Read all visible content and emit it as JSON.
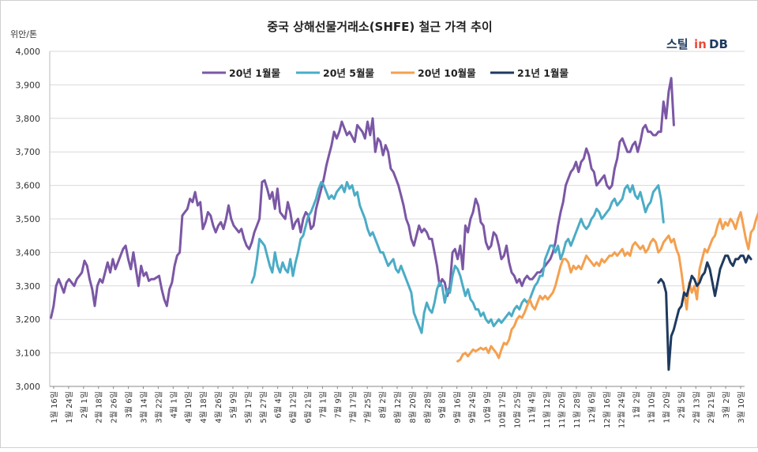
{
  "chart_data": {
    "type": "line",
    "title": "중국 상해선물거래소(SHFE) 철근 가격 추이",
    "ylabel": "위안/톤",
    "ylim": [
      3000,
      4000
    ],
    "yticks": [
      3000,
      3100,
      3200,
      3300,
      3400,
      3500,
      3600,
      3700,
      3800,
      3900,
      4000
    ],
    "ytick_labels": [
      "3,000",
      "3,100",
      "3,200",
      "3,300",
      "3,400",
      "3,500",
      "3,600",
      "3,700",
      "3,800",
      "3,900",
      "4,000"
    ],
    "grid": "horizontal",
    "legend_position": "top",
    "x_count": 270,
    "x_tick_labels": [
      "1월 16일",
      "1월 24일",
      "2월 1일",
      "2월 18일",
      "2월 26일",
      "3월 6일",
      "3월 14일",
      "3월 22일",
      "4월 1일",
      "4월 10일",
      "4월 18일",
      "4월 26일",
      "5월 9일",
      "5월 17일",
      "5월 27일",
      "6월 4일",
      "6월 12일",
      "6월 21일",
      "7월 1일",
      "7월 9일",
      "7월 17일",
      "7월 25일",
      "8월 2일",
      "8월 12일",
      "8월 20일",
      "8월 28일",
      "9월 8일",
      "9월 16일",
      "9월 24일",
      "10월 9일",
      "10월 17일",
      "10월 25일",
      "11월 4일",
      "11월 12일",
      "11월 20일",
      "11월 28일",
      "12월 6일",
      "12월 16일",
      "12월 24일",
      "1월 2일",
      "1월 10일",
      "1월 20일",
      "2월 5일",
      "2월 13일",
      "2월 21일",
      "3월 2일",
      "3월 10일"
    ],
    "series": [
      {
        "name": "20년 1월물",
        "color": "#7b57a5",
        "start": 0,
        "values": [
          3205,
          3240,
          3300,
          3320,
          3300,
          3280,
          3310,
          3320,
          3310,
          3300,
          3320,
          3330,
          3340,
          3375,
          3360,
          3320,
          3290,
          3240,
          3300,
          3320,
          3310,
          3340,
          3370,
          3340,
          3380,
          3350,
          3370,
          3390,
          3410,
          3420,
          3380,
          3350,
          3400,
          3350,
          3300,
          3360,
          3330,
          3340,
          3315,
          3320,
          3320,
          3325,
          3330,
          3290,
          3260,
          3240,
          3290,
          3310,
          3360,
          3390,
          3400,
          3510,
          3520,
          3530,
          3560,
          3550,
          3580,
          3540,
          3550,
          3470,
          3490,
          3520,
          3510,
          3480,
          3460,
          3480,
          3490,
          3470,
          3500,
          3540,
          3500,
          3480,
          3470,
          3460,
          3470,
          3440,
          3420,
          3410,
          3430,
          3460,
          3480,
          3500,
          3610,
          3615,
          3590,
          3560,
          3580,
          3530,
          3590,
          3520,
          3510,
          3500,
          3550,
          3520,
          3470,
          3490,
          3500,
          3460,
          3500,
          3520,
          3510,
          3470,
          3480,
          3530,
          3560,
          3590,
          3620,
          3660,
          3690,
          3720,
          3760,
          3740,
          3760,
          3790,
          3770,
          3750,
          3760,
          3745,
          3730,
          3780,
          3770,
          3760,
          3740,
          3790,
          3750,
          3800,
          3700,
          3740,
          3730,
          3690,
          3720,
          3700,
          3650,
          3640,
          3620,
          3600,
          3570,
          3540,
          3500,
          3480,
          3440,
          3420,
          3450,
          3480,
          3460,
          3470,
          3460,
          3440,
          3440,
          3400,
          3360,
          3300,
          3320,
          3310,
          3270,
          3300,
          3400,
          3410,
          3380,
          3420,
          3350,
          3480,
          3460,
          3500,
          3520,
          3560,
          3540,
          3490,
          3480,
          3430,
          3410,
          3420,
          3460,
          3450,
          3420,
          3380,
          3390,
          3420,
          3370,
          3340,
          3330,
          3310,
          3320,
          3300,
          3320,
          3330,
          3320,
          3320,
          3330,
          3340,
          3340,
          3350,
          3360,
          3370,
          3380,
          3400,
          3430,
          3480,
          3520,
          3550,
          3600,
          3620,
          3640,
          3650,
          3670,
          3640,
          3670,
          3680,
          3710,
          3690,
          3650,
          3640,
          3600,
          3610,
          3620,
          3630,
          3600,
          3590,
          3600,
          3650,
          3680,
          3730,
          3740,
          3720,
          3700,
          3700,
          3720,
          3730,
          3700,
          3730,
          3770,
          3780,
          3760,
          3760,
          3750,
          3750,
          3760,
          3760,
          3850,
          3800,
          3880,
          3920,
          3780
        ]
      },
      {
        "name": "20년 5월물",
        "color": "#4bacc6",
        "start": 78,
        "values": [
          3310,
          3330,
          3380,
          3440,
          3430,
          3420,
          3390,
          3360,
          3340,
          3400,
          3360,
          3340,
          3370,
          3350,
          3340,
          3380,
          3330,
          3370,
          3400,
          3440,
          3450,
          3480,
          3510,
          3520,
          3540,
          3560,
          3590,
          3610,
          3600,
          3580,
          3560,
          3570,
          3560,
          3580,
          3590,
          3600,
          3580,
          3610,
          3590,
          3600,
          3570,
          3580,
          3540,
          3520,
          3500,
          3470,
          3450,
          3460,
          3440,
          3420,
          3400,
          3400,
          3380,
          3360,
          3370,
          3380,
          3350,
          3340,
          3360,
          3340,
          3320,
          3300,
          3280,
          3220,
          3200,
          3180,
          3160,
          3220,
          3250,
          3230,
          3220,
          3250,
          3290,
          3310,
          3300,
          3250,
          3290,
          3280,
          3330,
          3360,
          3350,
          3330,
          3300,
          3270,
          3290,
          3260,
          3250,
          3230,
          3230,
          3210,
          3220,
          3200,
          3190,
          3200,
          3180,
          3190,
          3200,
          3190,
          3200,
          3210,
          3220,
          3210,
          3230,
          3240,
          3230,
          3250,
          3260,
          3250,
          3260,
          3280,
          3300,
          3310,
          3330,
          3330,
          3380,
          3400,
          3420,
          3420,
          3400,
          3420,
          3380,
          3400,
          3430,
          3440,
          3420,
          3440,
          3460,
          3480,
          3500,
          3480,
          3470,
          3480,
          3500,
          3510,
          3530,
          3520,
          3500,
          3510,
          3520,
          3530,
          3550,
          3560,
          3540,
          3550,
          3560,
          3590,
          3600,
          3580,
          3600,
          3570,
          3560,
          3580,
          3550,
          3520,
          3540,
          3550,
          3580,
          3590,
          3600,
          3560,
          3490
        ]
      },
      {
        "name": "20년 10월물",
        "color": "#f4a04f",
        "start": 158,
        "values": [
          3075,
          3080,
          3095,
          3100,
          3090,
          3100,
          3110,
          3105,
          3110,
          3115,
          3110,
          3115,
          3100,
          3120,
          3110,
          3100,
          3085,
          3110,
          3130,
          3125,
          3140,
          3170,
          3180,
          3200,
          3210,
          3205,
          3220,
          3240,
          3260,
          3240,
          3230,
          3250,
          3270,
          3260,
          3270,
          3260,
          3270,
          3280,
          3300,
          3330,
          3360,
          3380,
          3380,
          3370,
          3340,
          3360,
          3350,
          3360,
          3350,
          3370,
          3390,
          3380,
          3370,
          3360,
          3370,
          3360,
          3380,
          3370,
          3380,
          3390,
          3390,
          3400,
          3390,
          3400,
          3410,
          3390,
          3400,
          3390,
          3420,
          3430,
          3420,
          3410,
          3420,
          3400,
          3410,
          3430,
          3440,
          3430,
          3400,
          3410,
          3430,
          3440,
          3450,
          3430,
          3440,
          3410,
          3390,
          3340,
          3280,
          3230,
          3310,
          3280,
          3300,
          3260,
          3350,
          3380,
          3410,
          3400,
          3420,
          3440,
          3450,
          3480,
          3500,
          3470,
          3490,
          3480,
          3500,
          3490,
          3470,
          3500,
          3520,
          3480,
          3440,
          3410,
          3460,
          3470,
          3500,
          3520,
          3510,
          3500,
          3480,
          3490,
          3510,
          3500,
          3500,
          3510,
          3480
        ]
      },
      {
        "name": "21년 1월물",
        "color": "#1f3a5f",
        "start": 236,
        "values": [
          3310,
          3320,
          3310,
          3280,
          3050,
          3150,
          3170,
          3200,
          3230,
          3240,
          3280,
          3270,
          3300,
          3330,
          3320,
          3300,
          3310,
          3330,
          3340,
          3370,
          3350,
          3310,
          3270,
          3310,
          3350,
          3370,
          3390,
          3390,
          3370,
          3360,
          3380,
          3380,
          3390,
          3390,
          3370,
          3390,
          3380
        ]
      }
    ]
  }
}
